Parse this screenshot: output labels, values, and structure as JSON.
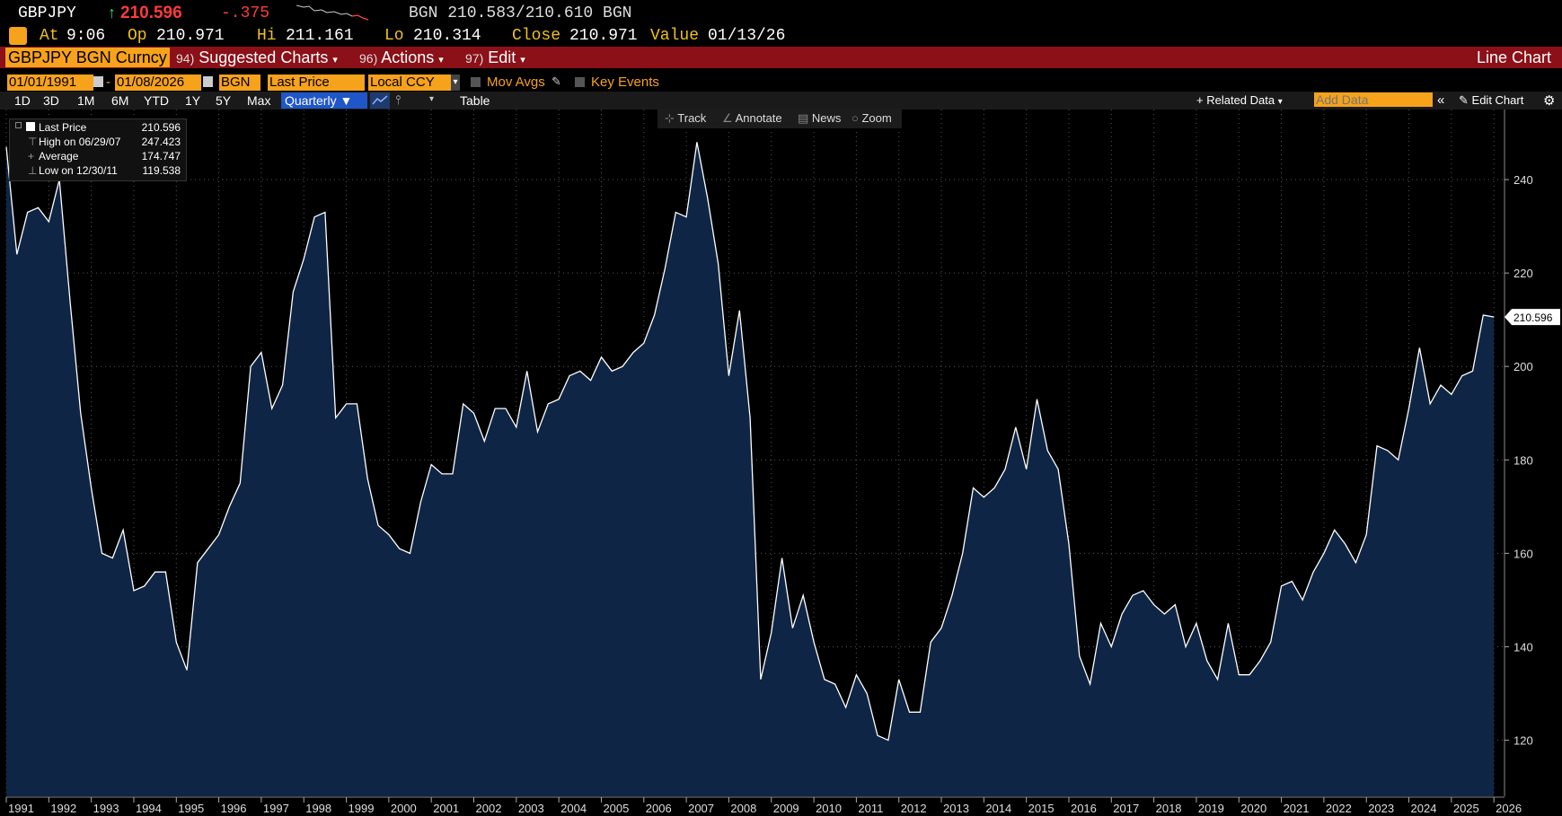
{
  "header": {
    "ticker": "GBPJPY",
    "arrow": "↑",
    "price": "210.596",
    "change": "-.375",
    "bid_ask": "BGN 210.583/210.610 BGN",
    "at_label": "At",
    "at_time": "9:06",
    "open_label": "Op",
    "open": "210.971",
    "high_label": "Hi",
    "high": "211.161",
    "low_label": "Lo",
    "low": "210.314",
    "close_label": "Close",
    "close": "210.971",
    "value_label": "Value",
    "value_date": "01/13/26"
  },
  "menu": {
    "security": "GBPJPY BGN Curncy",
    "suggested_num": "94)",
    "suggested": "Suggested Charts",
    "actions_num": "96)",
    "actions": "Actions",
    "edit_num": "97)",
    "edit": "Edit",
    "chart_type": "Line Chart"
  },
  "controls": {
    "start_date": "01/01/1991",
    "end_date": "01/08/2026",
    "source": "BGN",
    "field": "Last Price",
    "currency": "Local CCY",
    "mov_avgs": "Mov Avgs",
    "key_events": "Key Events"
  },
  "periods": [
    "1D",
    "3D",
    "1M",
    "6M",
    "YTD",
    "1Y",
    "5Y",
    "Max"
  ],
  "frequency": "Quarterly",
  "table_label": "Table",
  "related_data": "Related Data",
  "add_data_placeholder": "Add Data",
  "edit_chart": "Edit Chart",
  "chart_tools": [
    "Track",
    "Annotate",
    "News",
    "Zoom"
  ],
  "legend": {
    "last_label": "Last Price",
    "last_value": "210.596",
    "high_label": "High on 06/29/07",
    "high_value": "247.423",
    "avg_label": "Average",
    "avg_value": "174.747",
    "low_label": "Low on 12/30/11",
    "low_value": "119.538"
  },
  "colors": {
    "accent": "#f7a21b",
    "menu_bar": "#8b1018",
    "area_fill": "#0f2545",
    "line": "#ffffff",
    "up": "#33dd55",
    "down": "#ff3b3b"
  },
  "chart_data": {
    "type": "area",
    "title": "",
    "xlabel": "",
    "ylabel": "",
    "ylim": [
      108,
      255
    ],
    "yticks": [
      120,
      140,
      160,
      180,
      200,
      220,
      240
    ],
    "xlim": [
      1991.0,
      2026.25
    ],
    "year_labels": [
      "1991",
      "1992",
      "1993",
      "1994",
      "1995",
      "1996",
      "1997",
      "1998",
      "1999",
      "2000",
      "2001",
      "2002",
      "2003",
      "2004",
      "2005",
      "2006",
      "2007",
      "2008",
      "2009",
      "2010",
      "2011",
      "2012",
      "2013",
      "2014",
      "2015",
      "2016",
      "2017",
      "2018",
      "2019",
      "2020",
      "2021",
      "2022",
      "2023",
      "2024",
      "2025",
      "2026"
    ],
    "last_value_label": "210.596",
    "grid": true,
    "series": [
      {
        "x": [
          1991.0,
          1991.25,
          1991.5,
          1991.75,
          1992.0,
          1992.25,
          1992.5,
          1992.75,
          1993.0,
          1993.25,
          1993.5,
          1993.75,
          1994.0,
          1994.25,
          1994.5,
          1994.75,
          1995.0,
          1995.25,
          1995.5,
          1995.75,
          1996.0,
          1996.25,
          1996.5,
          1996.75,
          1997.0,
          1997.25,
          1997.5,
          1997.75,
          1998.0,
          1998.25,
          1998.5,
          1998.75,
          1999.0,
          1999.25,
          1999.5,
          1999.75,
          2000.0,
          2000.25,
          2000.5,
          2000.75,
          2001.0,
          2001.25,
          2001.5,
          2001.75,
          2002.0,
          2002.25,
          2002.5,
          2002.75,
          2003.0,
          2003.25,
          2003.5,
          2003.75,
          2004.0,
          2004.25,
          2004.5,
          2004.75,
          2005.0,
          2005.25,
          2005.5,
          2005.75,
          2006.0,
          2006.25,
          2006.5,
          2006.75,
          2007.0,
          2007.25,
          2007.5,
          2007.75,
          2008.0,
          2008.25,
          2008.5,
          2008.75,
          2009.0,
          2009.25,
          2009.5,
          2009.75,
          2010.0,
          2010.25,
          2010.5,
          2010.75,
          2011.0,
          2011.25,
          2011.5,
          2011.75,
          2012.0,
          2012.25,
          2012.5,
          2012.75,
          2013.0,
          2013.25,
          2013.5,
          2013.75,
          2014.0,
          2014.25,
          2014.5,
          2014.75,
          2015.0,
          2015.25,
          2015.5,
          2015.75,
          2016.0,
          2016.25,
          2016.5,
          2016.75,
          2017.0,
          2017.25,
          2017.5,
          2017.75,
          2018.0,
          2018.25,
          2018.5,
          2018.75,
          2019.0,
          2019.25,
          2019.5,
          2019.75,
          2020.0,
          2020.25,
          2020.5,
          2020.75,
          2021.0,
          2021.25,
          2021.5,
          2021.75,
          2022.0,
          2022.25,
          2022.5,
          2022.75,
          2023.0,
          2023.25,
          2023.5,
          2023.75,
          2024.0,
          2024.25,
          2024.5,
          2024.75,
          2025.0,
          2025.25,
          2025.5,
          2025.75,
          2026.0
        ],
        "y": [
          247,
          224,
          233,
          234,
          231,
          240,
          214,
          190,
          174,
          160,
          159,
          165,
          152,
          153,
          156,
          156,
          141,
          135,
          158,
          161,
          164,
          170,
          175,
          200,
          203,
          191,
          196,
          216,
          223,
          232,
          233,
          189,
          192,
          192,
          176,
          166,
          164,
          161,
          160,
          171,
          179,
          177,
          177,
          192,
          190,
          184,
          191,
          191,
          187,
          199,
          186,
          192,
          193,
          198,
          199,
          197,
          202,
          199,
          200,
          203,
          205,
          211,
          221,
          233,
          232,
          248,
          236,
          222,
          198,
          212,
          189,
          133,
          143,
          159,
          144,
          151,
          141,
          133,
          132,
          127,
          134,
          130,
          121,
          120,
          133,
          126,
          126,
          141,
          144,
          151,
          160,
          174,
          172,
          174,
          178,
          187,
          178,
          193,
          182,
          178,
          162,
          138,
          132,
          145,
          140,
          147,
          151,
          152,
          149,
          147,
          149,
          140,
          145,
          137,
          133,
          145,
          134,
          134,
          137,
          141,
          153,
          154,
          150,
          156,
          160,
          165,
          162,
          158,
          164,
          183,
          182,
          180,
          191,
          204,
          192,
          196,
          194,
          198,
          199,
          211,
          210.596
        ]
      }
    ]
  }
}
